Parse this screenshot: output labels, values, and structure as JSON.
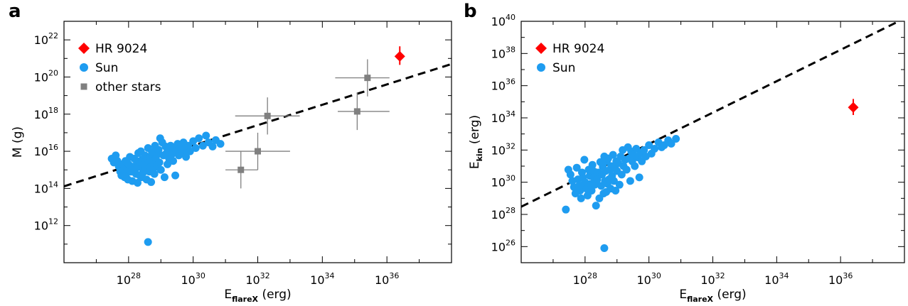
{
  "chart_data": [
    {
      "panel_label": "a",
      "type": "scatter",
      "xlabel": "E",
      "xlabel_sub": "flareX",
      "xlabel_unit": "(erg)",
      "ylabel": "M (g)",
      "x_scale": "log",
      "y_scale": "log",
      "xlim": [
        1e+26,
        1e+38
      ],
      "ylim": [
        10000000000.0,
        1e+23
      ],
      "x_ticks": [
        {
          "value": 1e+28,
          "base": "10",
          "exp": "28"
        },
        {
          "value": 1e+30,
          "base": "10",
          "exp": "30"
        },
        {
          "value": 1e+32,
          "base": "10",
          "exp": "32"
        },
        {
          "value": 1e+34,
          "base": "10",
          "exp": "34"
        },
        {
          "value": 1e+36,
          "base": "10",
          "exp": "36"
        }
      ],
      "y_ticks": [
        {
          "value": 1000000000000.0,
          "base": "10",
          "exp": "12"
        },
        {
          "value": 100000000000000.0,
          "base": "10",
          "exp": "14"
        },
        {
          "value": 1e+16,
          "base": "10",
          "exp": "16"
        },
        {
          "value": 1e+18,
          "base": "10",
          "exp": "18"
        },
        {
          "value": 1e+20,
          "base": "10",
          "exp": "20"
        },
        {
          "value": 1e+22,
          "base": "10",
          "exp": "22"
        }
      ],
      "grid": false,
      "legend_position": "top-left",
      "legend": [
        {
          "label": "HR 9024",
          "marker": "diamond",
          "color": "#ff0000"
        },
        {
          "label": "Sun",
          "marker": "circle",
          "color": "#1e9cf0"
        },
        {
          "label": "other stars",
          "marker": "square",
          "color": "#808080"
        }
      ],
      "fit_line": {
        "style": "dashed",
        "points": [
          [
            1e+26,
            130000000000000.0
          ],
          [
            1e+38,
            5e+20
          ]
        ]
      },
      "series": [
        {
          "name": "HR 9024",
          "marker": "diamond",
          "color": "#ff0000",
          "points": [
            {
              "x": 2.5e+36,
              "y": 1.3e+21,
              "y_lo": 4.5e+20,
              "y_hi": 4.5e+21
            }
          ]
        },
        {
          "name": "other stars",
          "marker": "square",
          "color": "#808080",
          "points": [
            {
              "x": 3e+31,
              "y": 1000000000000000.0,
              "x_lo": 1e+31,
              "x_hi": 1e+32,
              "y_lo": 100000000000000.0,
              "y_hi": 1e+16
            },
            {
              "x": 1e+32,
              "y": 1e+16,
              "x_lo": 1e+31,
              "x_hi": 1e+33,
              "y_lo": 1000000000000000.0,
              "y_hi": 1e+17
            },
            {
              "x": 2e+32,
              "y": 8e+17,
              "x_lo": 2e+31,
              "x_hi": 2e+33,
              "y_lo": 8e+16,
              "y_hi": 8e+18
            },
            {
              "x": 1.2e+35,
              "y": 1.4e+18,
              "x_lo": 3e+34,
              "x_hi": 1.2e+36,
              "y_lo": 1.4e+17,
              "y_hi": 1.4e+19
            },
            {
              "x": 2.5e+35,
              "y": 9e+19,
              "x_lo": 2.5e+34,
              "x_hi": 1.2e+36,
              "y_lo": 9e+18,
              "y_hi": 9e+20
            }
          ]
        },
        {
          "name": "Sun",
          "marker": "circle",
          "color": "#1e9cf0",
          "points": [
            [
              3e+27,
              4000000000000000.0
            ],
            [
              3.5e+27,
              2500000000000000.0
            ],
            [
              4e+27,
              6000000000000000.0
            ],
            [
              4.5e+27,
              3000000000000000.0
            ],
            [
              5e+27,
              1500000000000000.0
            ],
            [
              5.5e+27,
              800000000000000.0
            ],
            [
              6e+27,
              500000000000000.0
            ],
            [
              6.5e+27,
              2000000000000000.0
            ],
            [
              7e+27,
              1000000000000000.0
            ],
            [
              7.5e+27,
              400000000000000.0
            ],
            [
              8e+27,
              3000000000000000.0
            ],
            [
              8.5e+27,
              600000000000000.0
            ],
            [
              9e+27,
              1200000000000000.0
            ],
            [
              9.5e+27,
              300000000000000.0
            ],
            [
              1e+28,
              2000000000000000.0
            ],
            [
              1.1e+28,
              5000000000000000.0
            ],
            [
              1.2e+28,
              800000000000000.0
            ],
            [
              1.3e+28,
              250000000000000.0
            ],
            [
              1.4e+28,
              1500000000000000.0
            ],
            [
              1.5e+28,
              4000000000000000.0
            ],
            [
              1.6e+28,
              1000000000000000.0
            ],
            [
              1.7e+28,
              600000000000000.0
            ],
            [
              1.8e+28,
              3000000000000000.0
            ],
            [
              1.9e+28,
              200000000000000.0
            ],
            [
              2e+28,
              8000000000000000.0
            ],
            [
              2.1e+28,
              1500000000000000.0
            ],
            [
              2.2e+28,
              500000000000000.0
            ],
            [
              2.3e+28,
              2500000000000000.0
            ],
            [
              2.4e+28,
              1e+16
            ],
            [
              2.5e+28,
              400000000000000.0
            ],
            [
              2.6e+28,
              3500000000000000.0
            ],
            [
              2.7e+28,
              1200000000000000.0
            ],
            [
              2.8e+28,
              700000000000000.0
            ],
            [
              3e+28,
              2000000000000000.0
            ],
            [
              3.2e+28,
              6000000000000000.0
            ],
            [
              3.4e+28,
              1000000000000000.0
            ],
            [
              3.6e+28,
              300000000000000.0
            ],
            [
              3.8e+28,
              4000000000000000.0
            ],
            [
              4e+28,
              1.5e+16
            ],
            [
              4.2e+28,
              2500000000000000.0
            ],
            [
              4.4e+28,
              800000000000000.0
            ],
            [
              4.6e+28,
              5000000000000000.0
            ],
            [
              4.8e+28,
              1500000000000000.0
            ],
            [
              5e+28,
              220000000000000.0
            ],
            [
              5.3e+28,
              9000000000000000.0
            ],
            [
              5.6e+28,
              3000000000000000.0
            ],
            [
              6e+28,
              1200000000000000.0
            ],
            [
              6.3e+28,
              600000000000000.0
            ],
            [
              6.6e+28,
              2e+16
            ],
            [
              7e+28,
              4000000000000000.0
            ],
            [
              7.5e+28,
              1800000000000000.0
            ],
            [
              8e+28,
              7000000000000000.0
            ],
            [
              8.5e+28,
              1.2e+16
            ],
            [
              9e+28,
              2500000000000000.0
            ],
            [
              9.5e+28,
              5e+16
            ],
            [
              1e+29,
              1000000000000000.0
            ],
            [
              1.1e+29,
              3e+16
            ],
            [
              1.2e+29,
              6000000000000000.0
            ],
            [
              1.3e+29,
              400000000000000.0
            ],
            [
              1.4e+29,
              1.8e+16
            ],
            [
              1.5e+29,
              8000000000000000.0
            ],
            [
              1.6e+29,
              2000000000000000.0
            ],
            [
              1.7e+29,
              1.2e+16
            ],
            [
              1.8e+29,
              4000000000000000.0
            ],
            [
              2e+29,
              2e+16
            ],
            [
              2.2e+29,
              7000000000000000.0
            ],
            [
              2.4e+29,
              3000000000000000.0
            ],
            [
              2.6e+29,
              1.5e+16
            ],
            [
              2.8e+29,
              500000000000000.0
            ],
            [
              3e+29,
              1e+16
            ],
            [
              3.3e+29,
              2.5e+16
            ],
            [
              3.6e+29,
              6000000000000000.0
            ],
            [
              4e+29,
              1.6e+16
            ],
            [
              4.5e+29,
              8000000000000000.0
            ],
            [
              5e+29,
              3e+16
            ],
            [
              5.5e+29,
              1.2e+16
            ],
            [
              6e+29,
              5000000000000000.0
            ],
            [
              7e+29,
              2e+16
            ],
            [
              8e+29,
              1e+16
            ],
            [
              1e+30,
              3.5e+16
            ],
            [
              1.2e+30,
              1.5e+16
            ],
            [
              1.5e+30,
              5e+16
            ],
            [
              2e+30,
              2e+16
            ],
            [
              2.5e+30,
              7e+16
            ],
            [
              3e+30,
              3e+16
            ],
            [
              4e+30,
              1.8e+16
            ],
            [
              5e+30,
              4e+16
            ],
            [
              7e+30,
              2.5e+16
            ],
            [
              4e+28,
              130000000000.0
            ]
          ]
        }
      ]
    },
    {
      "panel_label": "b",
      "type": "scatter",
      "xlabel": "E",
      "xlabel_sub": "flareX",
      "xlabel_unit": "(erg)",
      "ylabel": "E",
      "ylabel_sub": "kin",
      "ylabel_unit": "(erg)",
      "x_scale": "log",
      "y_scale": "log",
      "xlim": [
        1e+26,
        1e+38
      ],
      "ylim": [
        1e+25,
        1e+40
      ],
      "x_ticks": [
        {
          "value": 1e+28,
          "base": "10",
          "exp": "28"
        },
        {
          "value": 1e+30,
          "base": "10",
          "exp": "30"
        },
        {
          "value": 1e+32,
          "base": "10",
          "exp": "32"
        },
        {
          "value": 1e+34,
          "base": "10",
          "exp": "34"
        },
        {
          "value": 1e+36,
          "base": "10",
          "exp": "36"
        }
      ],
      "y_ticks": [
        {
          "value": 1e+26,
          "base": "10",
          "exp": "26"
        },
        {
          "value": 1e+28,
          "base": "10",
          "exp": "28"
        },
        {
          "value": 1e+30,
          "base": "10",
          "exp": "30"
        },
        {
          "value": 1e+32,
          "base": "10",
          "exp": "32"
        },
        {
          "value": 1e+34,
          "base": "10",
          "exp": "34"
        },
        {
          "value": 1e+36,
          "base": "10",
          "exp": "36"
        },
        {
          "value": 1e+38,
          "base": "10",
          "exp": "38"
        },
        {
          "value": 1e+40,
          "base": "10",
          "exp": "40"
        }
      ],
      "grid": false,
      "legend_position": "top-left",
      "legend": [
        {
          "label": "HR 9024",
          "marker": "diamond",
          "color": "#ff0000"
        },
        {
          "label": "Sun",
          "marker": "circle",
          "color": "#1e9cf0"
        }
      ],
      "fit_line": {
        "style": "dashed",
        "points": [
          [
            1e+26,
            3e+28
          ],
          [
            1e+38,
            1.5e+40
          ]
        ]
      },
      "series": [
        {
          "name": "HR 9024",
          "marker": "diamond",
          "color": "#ff0000",
          "points": [
            {
              "x": 2.5e+36,
              "y": 4.5e+34,
              "y_lo": 1.5e+34,
              "y_hi": 1.5e+35
            }
          ]
        },
        {
          "name": "Sun",
          "marker": "circle",
          "color": "#1e9cf0",
          "points": [
            [
              2.5e+27,
              2e+28
            ],
            [
              3e+27,
              6e+30
            ],
            [
              3.5e+27,
              3e+30
            ],
            [
              4e+27,
              1.2e+30
            ],
            [
              4.5e+27,
              5e+29
            ],
            [
              5e+27,
              2e+29
            ],
            [
              5.5e+27,
              8e+30
            ],
            [
              6e+27,
              1.5e+30
            ],
            [
              6.5e+27,
              6e+29
            ],
            [
              7e+27,
              3e+29
            ],
            [
              7.5e+27,
              1e+29
            ],
            [
              8e+27,
              4e+30
            ],
            [
              8.5e+27,
              2e+30
            ],
            [
              9e+27,
              7e+29
            ],
            [
              9.5e+27,
              2.5e+31
            ],
            [
              1e+28,
              1e+30
            ],
            [
              1.1e+28,
              4e+29
            ],
            [
              1.2e+28,
              1.5e+29
            ],
            [
              1.3e+28,
              6e+30
            ],
            [
              1.4e+28,
              2.5e+30
            ],
            [
              1.5e+28,
              8e+29
            ],
            [
              1.6e+28,
              3e+29
            ],
            [
              1.7e+28,
              1.2e+31
            ],
            [
              1.8e+28,
              5e+30
            ],
            [
              1.9e+28,
              2e+30
            ],
            [
              2e+28,
              7e+29
            ],
            [
              2.2e+28,
              3.5e+28
            ],
            [
              2.4e+28,
              1.5e+30
            ],
            [
              2.6e+28,
              4e+30
            ],
            [
              2.8e+28,
              1e+29
            ],
            [
              3e+28,
              1.8e+31
            ],
            [
              3.2e+28,
              6e+29
            ],
            [
              3.4e+28,
              3e+30
            ],
            [
              3.6e+28,
              9e+30
            ],
            [
              3.8e+28,
              2e+29
            ],
            [
              4e+28,
              4e+31
            ],
            [
              4.2e+28,
              1.2e+30
            ],
            [
              4.4e+28,
              5e+30
            ],
            [
              4.6e+28,
              2.5e+29
            ],
            [
              4.8e+28,
              2e+31
            ],
            [
              5e+28,
              8e+29
            ],
            [
              5.3e+28,
              3e+31
            ],
            [
              5.6e+28,
              1.5e+30
            ],
            [
              6e+28,
              6e+30
            ],
            [
              6.3e+28,
              4e+29
            ],
            [
              6.6e+28,
              1e+31
            ],
            [
              7e+28,
              2.5e+30
            ],
            [
              7.5e+28,
              5e+31
            ],
            [
              8e+28,
              1.2e+30
            ],
            [
              8.5e+28,
              8e+30
            ],
            [
              9e+28,
              3e+29
            ],
            [
              9.5e+28,
              2e+31
            ],
            [
              1e+29,
              5e+30
            ],
            [
              1.1e+29,
              1.5e+31
            ],
            [
              1.2e+29,
              7e+29
            ],
            [
              1.3e+29,
              4e+31
            ],
            [
              1.4e+29,
              3e+30
            ],
            [
              1.5e+29,
              1e+32
            ],
            [
              1.6e+29,
              1e+31
            ],
            [
              1.8e+29,
              2.5e+31
            ],
            [
              2e+29,
              6e+30
            ],
            [
              2.2e+29,
              1.5e+32
            ],
            [
              2.4e+29,
              3e+31
            ],
            [
              2.6e+29,
              1.2e+30
            ],
            [
              2.8e+29,
              8e+31
            ],
            [
              3e+29,
              2e+31
            ],
            [
              3.3e+29,
              5e+31
            ],
            [
              3.6e+29,
              1e+31
            ],
            [
              4e+29,
              1.2e+32
            ],
            [
              4.5e+29,
              3.5e+31
            ],
            [
              5e+29,
              2e+30
            ],
            [
              5.5e+29,
              6e+31
            ],
            [
              6e+29,
              2e+31
            ],
            [
              7e+29,
              1e+32
            ],
            [
              8e+29,
              4e+31
            ],
            [
              1e+30,
              2e+32
            ],
            [
              1.2e+30,
              6e+31
            ],
            [
              1.5e+30,
              1.2e+32
            ],
            [
              2e+30,
              3e+32
            ],
            [
              2.5e+30,
              1.5e+32
            ],
            [
              3e+30,
              2e+32
            ],
            [
              4e+30,
              4e+32
            ],
            [
              5e+30,
              2.5e+32
            ],
            [
              7e+30,
              5e+32
            ],
            [
              4e+28,
              8e+25
            ]
          ]
        }
      ]
    }
  ]
}
